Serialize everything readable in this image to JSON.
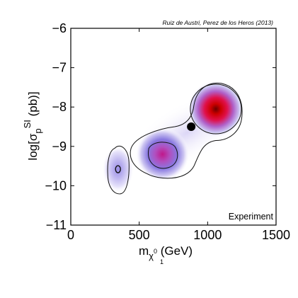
{
  "chart_data": {
    "type": "heatmap",
    "title": "Ruiz de Austri, Perez de los Heros (2013)",
    "xlabel_base": "m",
    "xlabel_sub": "χ",
    "xlabel_sub_sup": "0",
    "xlabel_sub_sub": "1",
    "xlabel_unit": " (GeV)",
    "ylabel_prefix": "log[σ",
    "ylabel_sub": "p",
    "ylabel_sup": "SI",
    "ylabel_suffix": " (pb)]",
    "xlim": [
      0,
      1500
    ],
    "ylim": [
      -11,
      -6
    ],
    "xticks": [
      0,
      500,
      1000,
      1500
    ],
    "xtick_labels": [
      "0",
      "500",
      "1000",
      "1500"
    ],
    "yticks": [
      -11,
      -10,
      -9,
      -8,
      -7,
      -6
    ],
    "ytick_labels": [
      "−11",
      "−10",
      "−9",
      "−8",
      "−7",
      "−6"
    ],
    "grid": false,
    "annotation": "Experiment",
    "colormap": [
      "#ffffff",
      "#8080ff",
      "#d000a0",
      "#ff0000",
      "#800000"
    ],
    "regions": [
      {
        "x": 1060,
        "y": -8.05,
        "peak": 1.0
      },
      {
        "x": 670,
        "y": -9.2,
        "peak": 0.7
      },
      {
        "x": 345,
        "y": -9.58,
        "peak": 0.45
      }
    ],
    "best_fit_point": {
      "x": 880,
      "y": -8.5
    }
  }
}
